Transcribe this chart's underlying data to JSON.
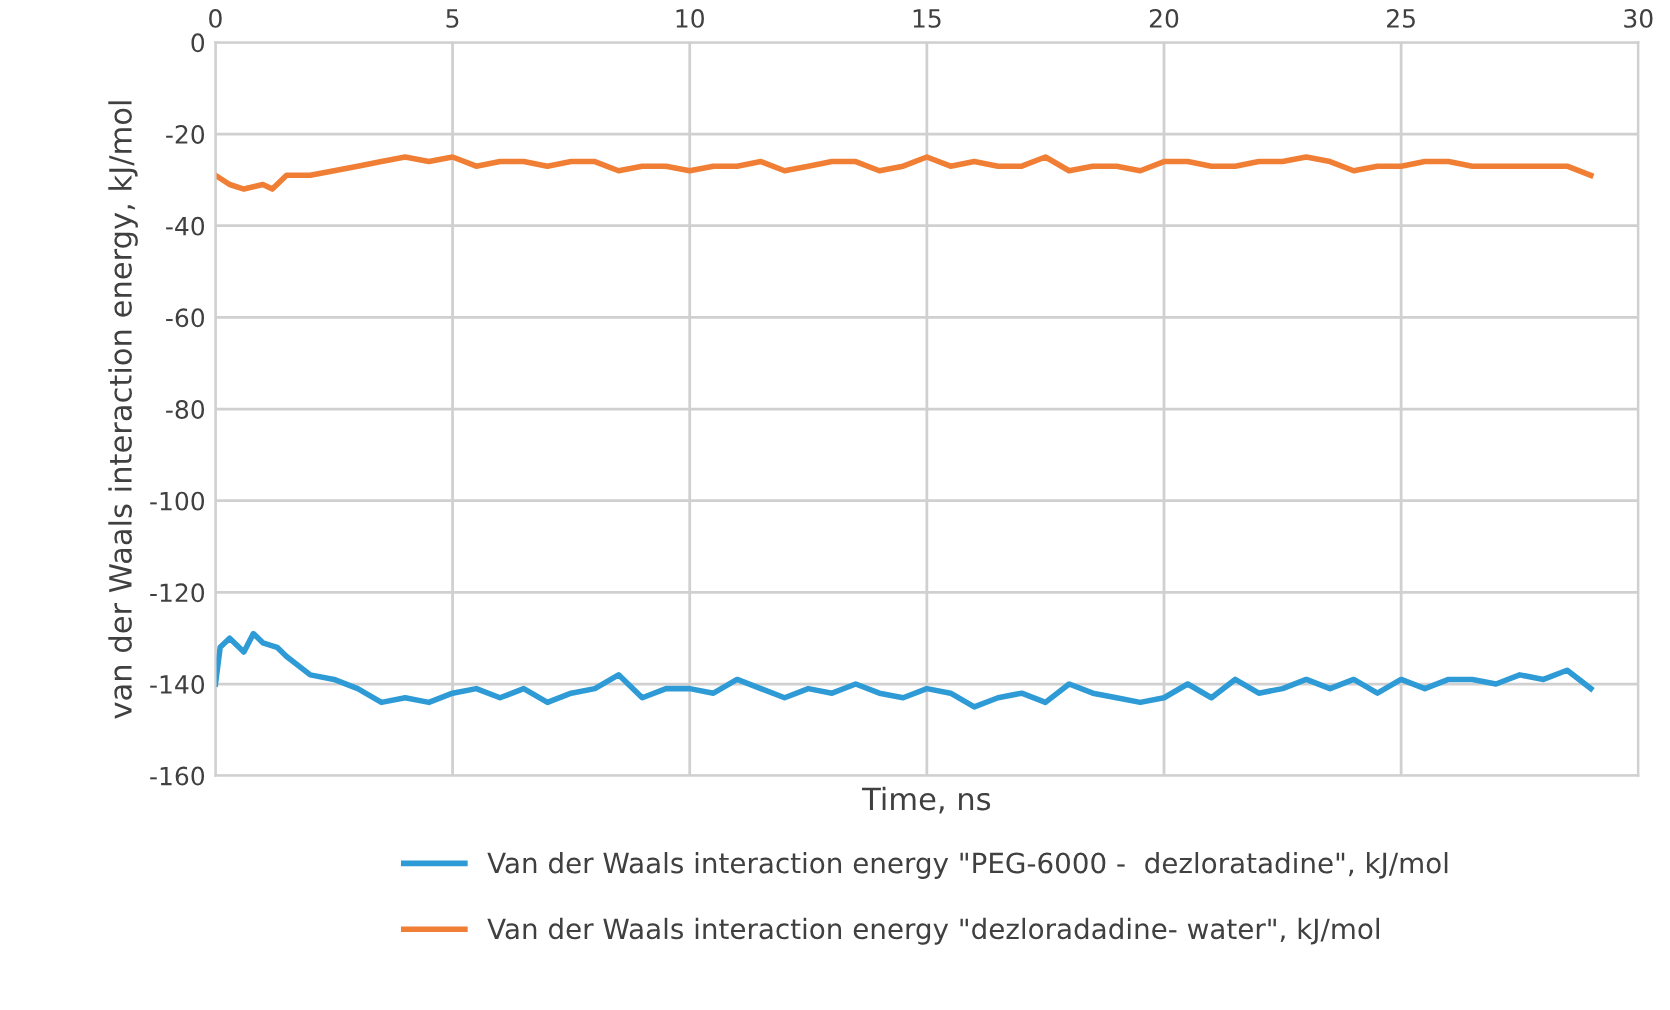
{
  "chart_data": {
    "type": "line",
    "xlabel": "Time, ns",
    "ylabel": "van der Waals interaction energy, kJ/mol",
    "xlim": [
      0,
      30
    ],
    "xticks": [
      0,
      5,
      10,
      15,
      20,
      25,
      30
    ],
    "ylim": [
      -160,
      0
    ],
    "yticks": [
      -160,
      -140,
      -120,
      -100,
      -80,
      -60,
      -40,
      -20,
      0
    ],
    "grid": true,
    "legend": "bottom",
    "marker": "none",
    "line_style": "solid",
    "series": [
      {
        "name": "Van der Waals interaction energy \"PEG-6000 -  dezloratadine\", kJ/mol",
        "color": "#2e9bd6",
        "x": [
          0,
          0.1,
          0.3,
          0.6,
          0.8,
          1.0,
          1.3,
          1.5,
          2.0,
          2.5,
          3.0,
          3.5,
          4.0,
          4.5,
          5.0,
          5.5,
          6,
          6.5,
          7,
          7.5,
          8,
          8.5,
          9,
          9.5,
          10,
          10.5,
          11,
          11.5,
          12,
          12.5,
          13,
          13.5,
          14,
          14.5,
          15,
          15.5,
          16,
          16.5,
          17,
          17.5,
          18,
          18.5,
          19,
          19.5,
          20,
          20.5,
          21,
          21.5,
          22,
          22.5,
          23,
          23.5,
          24,
          24.5,
          25,
          25.5,
          26,
          26.5,
          27,
          27.5,
          28,
          28.5,
          29
        ],
        "values": [
          -140,
          -132,
          -130,
          -133,
          -129,
          -131,
          -132,
          -134,
          -138,
          -139,
          -141,
          -144,
          -143,
          -144,
          -142,
          -141,
          -143,
          -141,
          -144,
          -142,
          -141,
          -138,
          -143,
          -141,
          -141,
          -142,
          -139,
          -141,
          -143,
          -141,
          -142,
          -140,
          -142,
          -143,
          -141,
          -142,
          -145,
          -143,
          -142,
          -144,
          -140,
          -142,
          -143,
          -144,
          -143,
          -140,
          -143,
          -139,
          -142,
          -141,
          -139,
          -141,
          -139,
          -142,
          -139,
          -141,
          -139,
          -139,
          -140,
          -138,
          -139,
          -137,
          -141
        ]
      },
      {
        "name": "Van der Waals interaction energy \"dezloradadine- water\", kJ/mol",
        "color": "#f07f35",
        "x": [
          0,
          0.3,
          0.6,
          1.0,
          1.2,
          1.5,
          2,
          2.5,
          3,
          3.5,
          4,
          4.5,
          5,
          5.5,
          6,
          6.5,
          7,
          7.5,
          8,
          8.5,
          9,
          9.5,
          10,
          10.5,
          11,
          11.5,
          12,
          12.5,
          13,
          13.5,
          14,
          14.5,
          15,
          15.5,
          16,
          16.5,
          17,
          17.5,
          18,
          18.5,
          19,
          19.5,
          20,
          20.5,
          21,
          21.5,
          22,
          22.5,
          23,
          23.5,
          24,
          24.5,
          25,
          25.5,
          26,
          26.5,
          27,
          27.5,
          28,
          28.5,
          29
        ],
        "values": [
          -29,
          -31,
          -32,
          -31,
          -32,
          -29,
          -29,
          -28,
          -27,
          -26,
          -25,
          -26,
          -25,
          -27,
          -26,
          -26,
          -27,
          -26,
          -26,
          -28,
          -27,
          -27,
          -28,
          -27,
          -27,
          -26,
          -28,
          -27,
          -26,
          -26,
          -28,
          -27,
          -25,
          -27,
          -26,
          -27,
          -27,
          -25,
          -28,
          -27,
          -27,
          -28,
          -26,
          -26,
          -27,
          -27,
          -26,
          -26,
          -25,
          -26,
          -28,
          -27,
          -27,
          -26,
          -26,
          -27,
          -27,
          -27,
          -27,
          -27,
          -29
        ]
      }
    ]
  }
}
